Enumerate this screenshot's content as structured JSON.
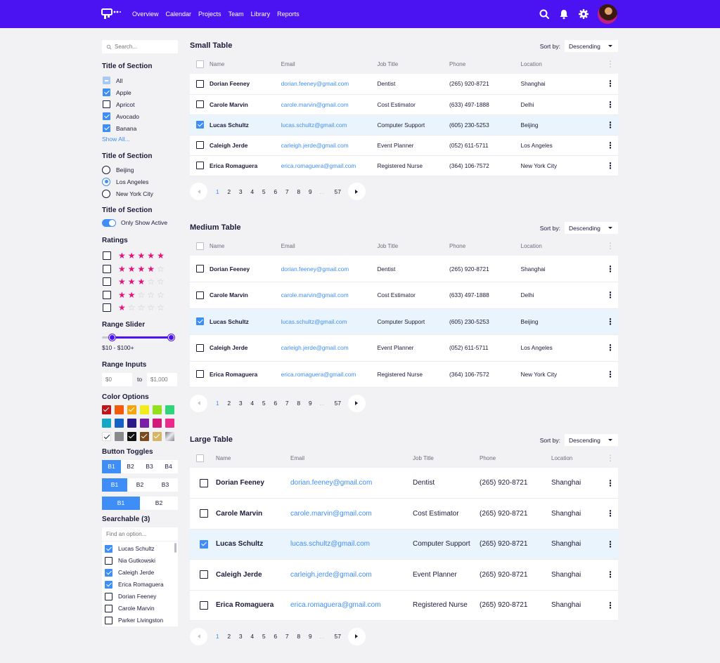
{
  "nav": {
    "links": [
      "Overview",
      "Calendar",
      "Projects",
      "Team",
      "Library",
      "Reports"
    ],
    "icons": [
      "search-icon",
      "bell-icon",
      "gear-icon"
    ],
    "brand_color": "#4b13f2"
  },
  "sidebar": {
    "search_placeholder": "Search...",
    "checkbox_section": {
      "title": "Title of Section",
      "items": [
        {
          "label": "All",
          "state": "indeterminate"
        },
        {
          "label": "Apple",
          "state": "checked"
        },
        {
          "label": "Apricot",
          "state": "unchecked"
        },
        {
          "label": "Avocado",
          "state": "checked"
        },
        {
          "label": "Banana",
          "state": "checked"
        }
      ],
      "show_all": "Show All..."
    },
    "radio_section": {
      "title": "Title of Section",
      "items": [
        {
          "label": "Beijing",
          "selected": false
        },
        {
          "label": "Los Angeles",
          "selected": true
        },
        {
          "label": "New York City",
          "selected": false
        }
      ]
    },
    "toggle_section": {
      "title": "Title of Section",
      "label": "Only Show Active",
      "on": true
    },
    "ratings": {
      "title": "Ratings",
      "levels": [
        5,
        4,
        3,
        2,
        1
      ],
      "max": 5
    },
    "range_slider": {
      "title": "Range Slider",
      "min_value": 10,
      "max_value": 100,
      "value_label": "$10 - $100+"
    },
    "range_inputs": {
      "title": "Range Inputs",
      "min_placeholder": "$0",
      "sep": "to",
      "max_placeholder": "$1,000"
    },
    "color_options": {
      "title": "Color Options",
      "colors": [
        {
          "hex": "#c0161b",
          "checked": true
        },
        {
          "hex": "#f35a0c",
          "checked": false
        },
        {
          "hex": "#f5a40b",
          "checked": true
        },
        {
          "hex": "#f2ec1a",
          "checked": false
        },
        {
          "hex": "#92e11b",
          "checked": false
        },
        {
          "hex": "#2fd57a",
          "checked": false
        },
        {
          "hex": "#14a8c6",
          "checked": false
        },
        {
          "hex": "#1662c4",
          "checked": false
        },
        {
          "hex": "#2c1a8a",
          "checked": false
        },
        {
          "hex": "#7a1ea8",
          "checked": false
        },
        {
          "hex": "#d4197a",
          "checked": false
        },
        {
          "hex": "#ec2a8a",
          "checked": false
        },
        {
          "hex": "#ffffff",
          "checked": true
        },
        {
          "hex": "#8a8a8a",
          "checked": false
        },
        {
          "hex": "#111111",
          "checked": true
        },
        {
          "hex": "#7a4a1c",
          "checked": true
        },
        {
          "hex": "#d5b566",
          "checked": true
        },
        {
          "hex": "#b8b8c0",
          "checked": false
        }
      ]
    },
    "button_toggles": {
      "title": "Button Toggles",
      "groups": [
        [
          "B1",
          "B2",
          "B3",
          "B4"
        ],
        [
          "B1",
          "B2",
          "B3"
        ],
        [
          "B1",
          "B2"
        ]
      ],
      "selected_label": "B1"
    },
    "searchable": {
      "title": "Searchable (3)",
      "placeholder": "Find an option...",
      "items": [
        {
          "label": "Lucas Schultz",
          "checked": true
        },
        {
          "label": "Nia Gutkowski",
          "checked": false
        },
        {
          "label": "Caleigh Jerde",
          "checked": true
        },
        {
          "label": "Erica Romaguera",
          "checked": true
        },
        {
          "label": "Dorian Feeney",
          "checked": false
        },
        {
          "label": "Carole Marvin",
          "checked": false
        },
        {
          "label": "Parker Livingston",
          "checked": false
        }
      ]
    }
  },
  "tables": [
    {
      "title": "Small Table",
      "sort_label": "Sort by:",
      "sort_value": "Descending",
      "columns": [
        "Name",
        "Email",
        "Job Title",
        "Phone",
        "Location"
      ],
      "rows": [
        {
          "name": "Dorian Feeney",
          "email": "dorian.feeney@gmail.com",
          "job": "Dentist",
          "phone": "(265) 920-8721",
          "location": "Shanghai",
          "checked": false
        },
        {
          "name": "Carole Marvin",
          "email": "carole.marvin@gmail.com",
          "job": "Cost Estimator",
          "phone": "(633) 497-1888",
          "location": "Delhi",
          "checked": false
        },
        {
          "name": "Lucas Schultz",
          "email": "lucas.schultz@gmail.com",
          "job": "Computer Support",
          "phone": "(605) 230-5253",
          "location": "Beijing",
          "checked": true
        },
        {
          "name": "Caleigh Jerde",
          "email": "carleigh.jerde@gmail.com",
          "job": "Event Planner",
          "phone": "(052) 611-5711",
          "location": "Los Angeles",
          "checked": false
        },
        {
          "name": "Erica Romaguera",
          "email": "erica.romaguera@gmail.com",
          "job": "Registered Nurse",
          "phone": "(364) 106-7572",
          "location": "New York City",
          "checked": false
        }
      ],
      "pages": [
        "1",
        "2",
        "3",
        "4",
        "5",
        "6",
        "7",
        "8",
        "9",
        "...",
        "57"
      ],
      "current_page": "1"
    },
    {
      "title": "Medium Table",
      "sort_label": "Sort by:",
      "sort_value": "Descending",
      "columns": [
        "Name",
        "Email",
        "Job Title",
        "Phone",
        "Location"
      ],
      "rows": [
        {
          "name": "Dorian Feeney",
          "email": "dorian.feeney@gmail.com",
          "job": "Dentist",
          "phone": "(265) 920-8721",
          "location": "Shanghai",
          "checked": false
        },
        {
          "name": "Carole Marvin",
          "email": "carole.marvin@gmail.com",
          "job": "Cost Estimator",
          "phone": "(633) 497-1888",
          "location": "Delhi",
          "checked": false
        },
        {
          "name": "Lucas Schultz",
          "email": "lucas.schultz@gmail.com",
          "job": "Computer Support",
          "phone": "(605) 230-5253",
          "location": "Beijing",
          "checked": true
        },
        {
          "name": "Caleigh Jerde",
          "email": "carleigh.jerde@gmail.com",
          "job": "Event Planner",
          "phone": "(052) 611-5711",
          "location": "Los Angeles",
          "checked": false
        },
        {
          "name": "Erica Romaguera",
          "email": "erica.romaguera@gmail.com",
          "job": "Registered Nurse",
          "phone": "(364) 106-7572",
          "location": "New York City",
          "checked": false
        }
      ],
      "pages": [
        "1",
        "2",
        "3",
        "4",
        "5",
        "6",
        "7",
        "8",
        "9",
        "...",
        "57"
      ],
      "current_page": "1"
    },
    {
      "title": "Large Table",
      "sort_label": "Sort by:",
      "sort_value": "Descending",
      "columns": [
        "Name",
        "Email",
        "Job Title",
        "Phone",
        "Location"
      ],
      "rows": [
        {
          "name": "Dorian Feeney",
          "email": "dorian.feeney@gmail.com",
          "job": "Dentist",
          "phone": "(265) 920-8721",
          "location": "Shanghai",
          "checked": false
        },
        {
          "name": "Carole Marvin",
          "email": "carole.marvin@gmail.com",
          "job": "Cost Estimator",
          "phone": "(265) 920-8721",
          "location": "Shanghai",
          "checked": false
        },
        {
          "name": "Lucas Schultz",
          "email": "lucas.schultz@gmail.com",
          "job": "Computer Support",
          "phone": "(265) 920-8721",
          "location": "Shanghai",
          "checked": true
        },
        {
          "name": "Caleigh Jerde",
          "email": "carleigh.jerde@gmail.com",
          "job": "Event Planner",
          "phone": "(265) 920-8721",
          "location": "Shanghai",
          "checked": false
        },
        {
          "name": "Erica Romaguera",
          "email": "erica.romaguera@gmail.com",
          "job": "Registered Nurse",
          "phone": "(265) 920-8721",
          "location": "Shanghai",
          "checked": false
        }
      ],
      "pages": [
        "1",
        "2",
        "3",
        "4",
        "5",
        "6",
        "7",
        "8",
        "9",
        "...",
        "57"
      ],
      "current_page": "1"
    }
  ]
}
